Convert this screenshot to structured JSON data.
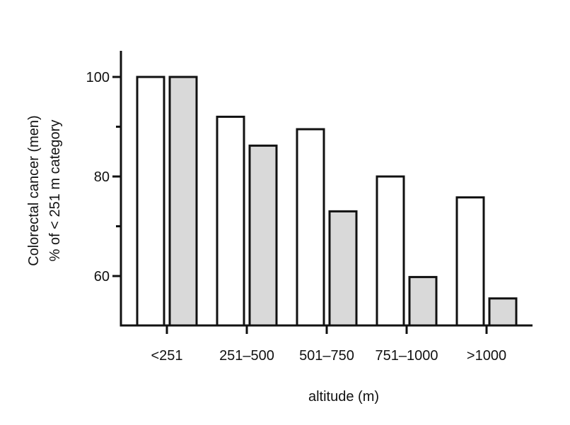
{
  "chart_data": {
    "type": "bar",
    "title": "",
    "xlabel": "altitude (m)",
    "ylabel": [
      "Colorectal cancer (men)",
      "% of < 251 m category"
    ],
    "categories": [
      "<251",
      "251–500",
      "501–750",
      "751–1000",
      ">1000"
    ],
    "series": [
      {
        "fill": "#ffffff",
        "values": [
          100,
          92,
          89.5,
          80,
          75.8
        ]
      },
      {
        "fill": "#d9d9d9",
        "values": [
          100,
          86.2,
          73,
          59.8,
          55.5
        ]
      }
    ],
    "ylim": [
      50,
      105
    ],
    "yticks_major": [
      60,
      80,
      100
    ],
    "yticks_minor": [
      70,
      90
    ],
    "grid": false,
    "legend": "none"
  }
}
